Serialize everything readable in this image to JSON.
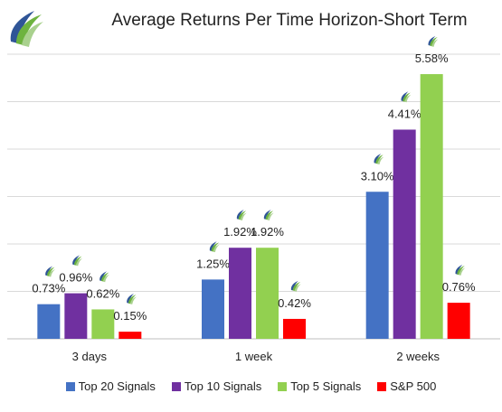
{
  "chart_data": {
    "type": "bar",
    "title": "Average Returns Per Time Horizon-Short Term",
    "xlabel": "",
    "ylabel": "",
    "categories": [
      "3 days",
      "1 week",
      "2 weeks"
    ],
    "ylim": [
      0,
      6
    ],
    "grid": true,
    "legend_position": "bottom",
    "series": [
      {
        "name": "Top 20 Signals",
        "color": "#4472C4",
        "values": [
          0.73,
          1.25,
          3.1
        ],
        "labels": [
          "0.73%",
          "1.25%",
          "3.10%"
        ]
      },
      {
        "name": "Top 10 Signals",
        "color": "#7030A0",
        "values": [
          0.96,
          1.92,
          4.41
        ],
        "labels": [
          "0.96%",
          "1.92%",
          "4.41%"
        ]
      },
      {
        "name": "Top 5 Signals",
        "color": "#92D050",
        "values": [
          0.62,
          1.92,
          5.58
        ],
        "labels": [
          "0.62%",
          "1.92%",
          "5.58%"
        ]
      },
      {
        "name": "S&P 500",
        "color": "#FF0000",
        "values": [
          0.15,
          0.42,
          0.76
        ],
        "labels": [
          "0.15%",
          "0.42%",
          "0.76%"
        ]
      }
    ]
  },
  "logo_icon": "leaf-swoosh-icon"
}
